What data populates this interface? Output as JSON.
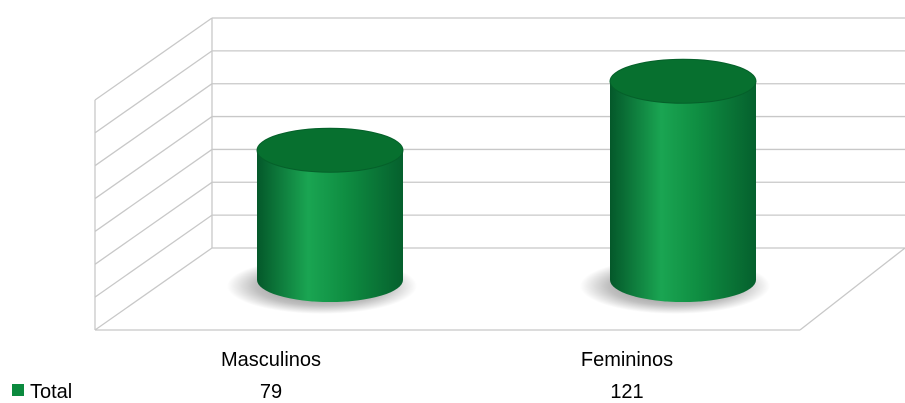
{
  "chart_data": {
    "type": "bar",
    "style": "3d-cylinder",
    "categories": [
      "Masculinos",
      "Femininos"
    ],
    "series": [
      {
        "name": "Total",
        "values": [
          79,
          121
        ]
      }
    ],
    "ylim": [
      0,
      140
    ],
    "grid": true,
    "legend": "bottom-left data table",
    "colors": {
      "series": "#0b8a3e",
      "series_dark": "#04582a",
      "series_light": "#1fb25a",
      "grid": "#c8c8c8"
    }
  }
}
